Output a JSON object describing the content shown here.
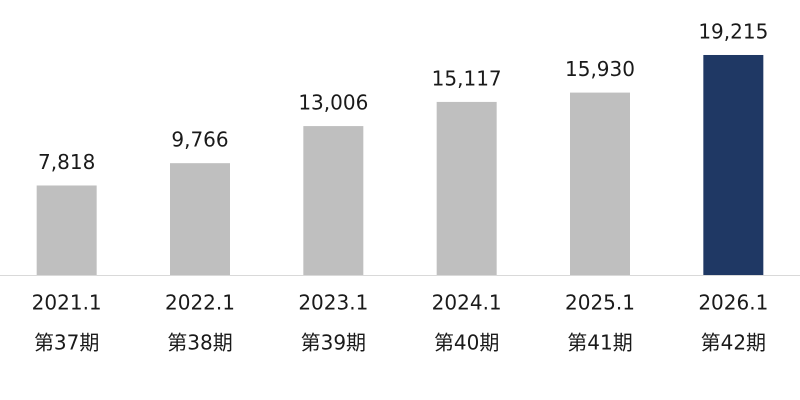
{
  "chart_data": {
    "type": "bar",
    "categories": [
      "2021.1",
      "2022.1",
      "2023.1",
      "2024.1",
      "2025.1",
      "2026.1"
    ],
    "periods": [
      "第37期",
      "第38期",
      "第39期",
      "第40期",
      "第41期",
      "第42期"
    ],
    "values": [
      7818,
      9766,
      13006,
      15117,
      15930,
      19215
    ],
    "value_labels": [
      "7,818",
      "9,766",
      "13,006",
      "15,117",
      "15,930",
      "19,215"
    ],
    "colors": [
      "#bfbfbf",
      "#bfbfbf",
      "#bfbfbf",
      "#bfbfbf",
      "#bfbfbf",
      "#1f3864"
    ],
    "ylim": [
      0,
      20000
    ]
  }
}
